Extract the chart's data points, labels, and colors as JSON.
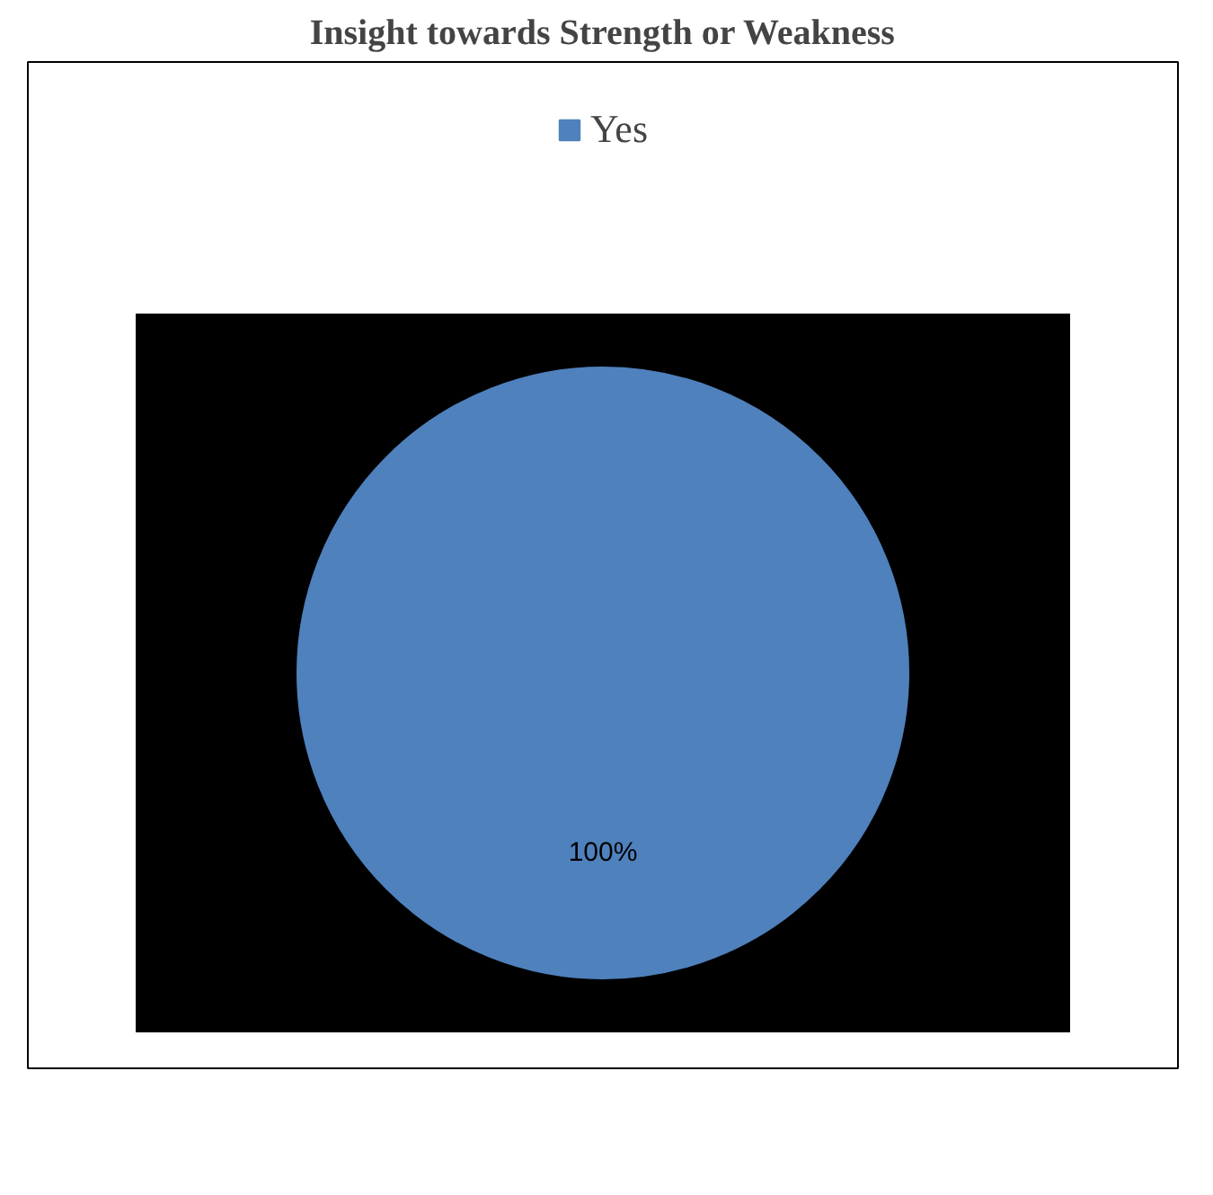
{
  "chart_data": {
    "type": "pie",
    "title": "Insight towards Strength or Weakness",
    "categories": [
      "Yes"
    ],
    "values": [
      100
    ],
    "colors": [
      "#4f81bd"
    ],
    "value_labels": [
      "100%"
    ],
    "legend": "top"
  }
}
